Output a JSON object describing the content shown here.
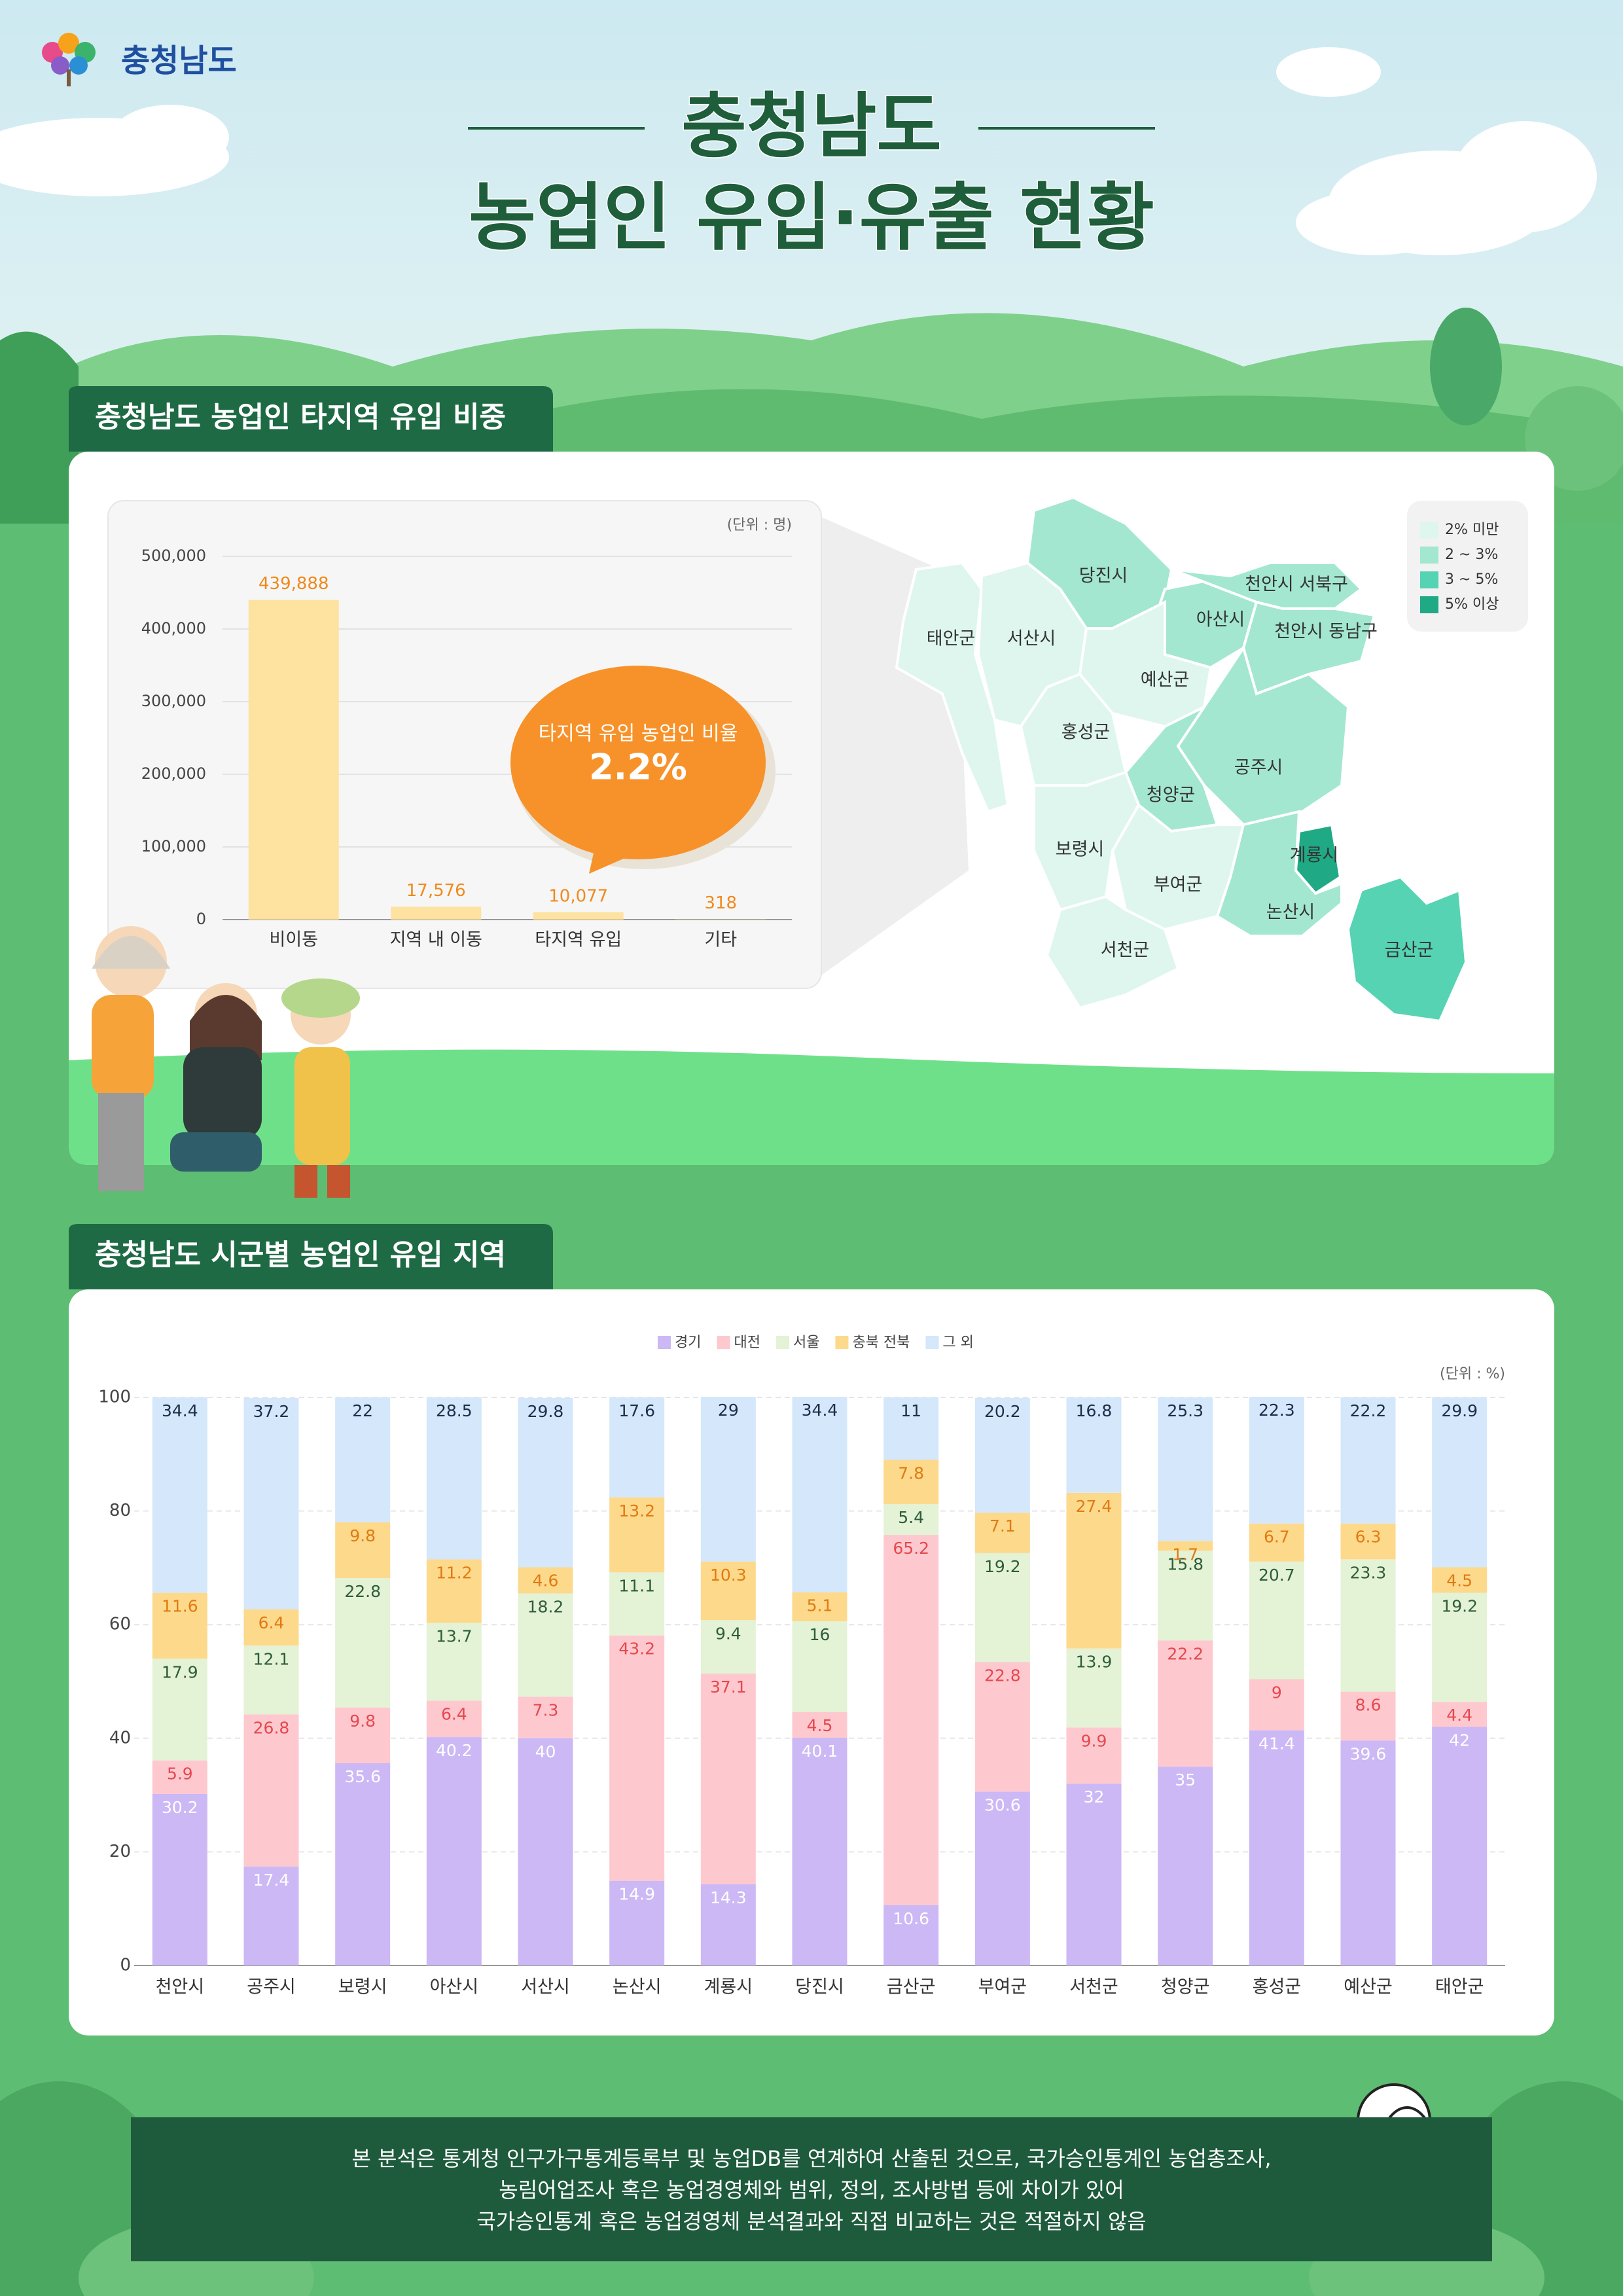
{
  "header": {
    "logo": "충청남도",
    "title": [
      "충청남도",
      "농업인 유입·유출 현황"
    ]
  },
  "chart_data": [
    {
      "type": "bar",
      "title": "충청남도 농업인 타지역 유입 비중",
      "unit": "(단위 : 명)",
      "categories": [
        "비이동",
        "지역 내 이동",
        "타지역 유입",
        "기타"
      ],
      "values": [
        439888,
        17576,
        10077,
        318
      ],
      "value_labels": [
        "439,888",
        "17,576",
        "10,077",
        "318"
      ],
      "color": "#fde2a0",
      "label_color": "#f08a1c",
      "ylim": [
        0,
        500000
      ],
      "yticks": [
        0,
        {
          "value": 100000,
          "label": "100,000"
        },
        {
          "value": 200000,
          "label": "200,000"
        },
        {
          "value": 300000,
          "label": "300,000"
        },
        {
          "value": 400000,
          "label": "400,000"
        },
        {
          "value": 500000,
          "label": "500,000"
        }
      ],
      "grid": true,
      "annotation": [
        "타지역 유입 농업인 비율",
        "2.2%"
      ]
    },
    {
      "type": "stacked_bar",
      "title": "충청남도 시군별 농업인 유입 지역",
      "unit": "(단위 : %)",
      "categories": [
        "천안시",
        "공주시",
        "보령시",
        "아산시",
        "서산시",
        "논산시",
        "계룡시",
        "당진시",
        "금산군",
        "부여군",
        "서천군",
        "청양군",
        "홍성군",
        "예산군",
        "태안군"
      ],
      "series": [
        {
          "name": "경기",
          "color": "#cbb8f5",
          "label_color": "#ffffff",
          "values": [
            30.2,
            17.4,
            35.6,
            40.2,
            40,
            14.9,
            14.3,
            40.1,
            10.6,
            30.6,
            32,
            35,
            41.4,
            39.6,
            42
          ]
        },
        {
          "name": "대전",
          "color": "#fec8cf",
          "label_color": "#e5484d",
          "values": [
            5.9,
            26.8,
            9.8,
            6.4,
            7.3,
            43.2,
            37.1,
            4.5,
            65.2,
            22.8,
            9.9,
            22.2,
            9,
            8.6,
            4.4
          ]
        },
        {
          "name": "서울",
          "color": "#e4f2d6",
          "label_color": "#2f5d3a",
          "values": [
            17.9,
            12.1,
            22.8,
            13.7,
            18.2,
            11.1,
            9.4,
            16,
            5.4,
            19.2,
            13.9,
            15.8,
            20.7,
            23.3,
            19.2
          ]
        },
        {
          "name": "충북 전북",
          "color": "#fdd98c",
          "label_color": "#e07b12",
          "values": [
            11.6,
            6.4,
            9.8,
            11.2,
            4.6,
            13.2,
            10.3,
            5.1,
            7.8,
            7.1,
            27.4,
            1.7,
            6.7,
            6.3,
            4.5
          ]
        },
        {
          "name": "그 외",
          "color": "#d4e7fb",
          "label_color": "#1f2d4a",
          "values": [
            34.4,
            37.2,
            22,
            28.5,
            29.8,
            17.6,
            29,
            34.4,
            11,
            20.2,
            16.8,
            25.3,
            22.3,
            22.2,
            29.9
          ]
        }
      ],
      "ylim": [
        0,
        100
      ],
      "yticks": [
        0,
        20,
        40,
        60,
        80,
        100
      ],
      "grid": true
    }
  ],
  "map": {
    "legend": [
      {
        "label": "2% 미만",
        "color": "#def6ee"
      },
      {
        "label": "2 ~ 3%",
        "color": "#a3e7d1"
      },
      {
        "label": "3 ~ 5%",
        "color": "#55d3b3"
      },
      {
        "label": "5% 이상",
        "color": "#20a985"
      }
    ],
    "regions": [
      {
        "name": "태안군",
        "color": "#def6ee"
      },
      {
        "name": "서산시",
        "color": "#def6ee"
      },
      {
        "name": "당진시",
        "color": "#a3e7d1"
      },
      {
        "name": "아산시",
        "color": "#a3e7d1"
      },
      {
        "name": "천안시 서북구",
        "color": "#a3e7d1"
      },
      {
        "name": "천안시 동남구",
        "color": "#a3e7d1"
      },
      {
        "name": "예산군",
        "color": "#def6ee"
      },
      {
        "name": "홍성군",
        "color": "#def6ee"
      },
      {
        "name": "공주시",
        "color": "#a3e7d1"
      },
      {
        "name": "청양군",
        "color": "#a3e7d1"
      },
      {
        "name": "보령시",
        "color": "#def6ee"
      },
      {
        "name": "부여군",
        "color": "#def6ee"
      },
      {
        "name": "계룡시",
        "color": "#20a985"
      },
      {
        "name": "논산시",
        "color": "#a3e7d1"
      },
      {
        "name": "서천군",
        "color": "#def6ee"
      },
      {
        "name": "금산군",
        "color": "#55d3b3"
      }
    ]
  },
  "footnote": [
    "본 분석은 통계청 인구가구통계등록부 및 농업DB를 연계하여 산출된 것으로, 국가승인통계인 농업총조사,",
    "농림어업조사 혹은 농업경영체와 범위, 정의, 조사방법 등에 차이가 있어",
    "국가승인통계 혹은 농업경영체 분석결과와 직접 비교하는 것은 적절하지 않음"
  ]
}
